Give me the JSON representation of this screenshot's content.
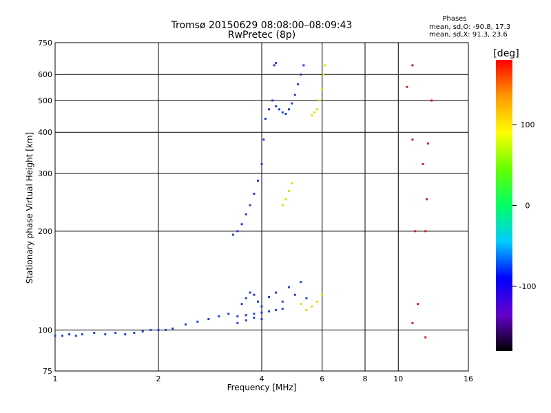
{
  "chart_data": {
    "type": "scatter",
    "title": "Tromsø 20150629 08:08:00–08:09:43",
    "subtitle": "RwPretec (8p)",
    "xlabel": "Frequency [MHz]",
    "ylabel": "Stationary phase Virtual Height [km]",
    "x_scale": "log",
    "y_scale": "log",
    "xlim": [
      1,
      16
    ],
    "ylim": [
      75,
      750
    ],
    "x_ticks": [
      1,
      2,
      4,
      6,
      8,
      10,
      16
    ],
    "y_ticks": [
      75,
      100,
      200,
      300,
      400,
      500,
      600,
      750
    ],
    "x_gridlines": [
      2,
      4,
      6,
      8,
      10
    ],
    "y_gridlines": [
      100,
      200,
      300,
      400,
      500,
      600
    ],
    "grid": true,
    "stats": {
      "heading": "Phases",
      "line_o": "mean, sd,O: -90.8, 17.3",
      "line_x": "mean, sd,X: 91.3, 23.6"
    },
    "colorbar": {
      "label": "[deg]",
      "range": [
        -180,
        180
      ],
      "ticks": [
        100,
        0,
        -100
      ],
      "colors": [
        "#000000",
        "#6600cc",
        "#0000ff",
        "#00ccff",
        "#00ff66",
        "#66ff00",
        "#ffff00",
        "#ff9900",
        "#ff0000"
      ],
      "placement": "right"
    },
    "series": [
      {
        "comment": "O-mode E/F1 lower trace, blue",
        "color": "#1f3fe0",
        "points": [
          [
            1.0,
            96
          ],
          [
            1.05,
            96
          ],
          [
            1.1,
            97
          ],
          [
            1.15,
            96
          ],
          [
            1.2,
            97
          ],
          [
            1.3,
            98
          ],
          [
            1.4,
            97
          ],
          [
            1.5,
            98
          ],
          [
            1.6,
            97
          ],
          [
            1.7,
            98
          ],
          [
            1.8,
            99
          ],
          [
            1.9,
            100
          ],
          [
            2.0,
            100
          ],
          [
            2.1,
            100
          ],
          [
            2.2,
            101
          ],
          [
            2.4,
            104
          ],
          [
            2.6,
            106
          ],
          [
            2.8,
            108
          ],
          [
            3.0,
            110
          ],
          [
            3.2,
            112
          ],
          [
            3.4,
            110
          ],
          [
            3.6,
            111
          ],
          [
            3.8,
            112
          ],
          [
            4.0,
            113
          ],
          [
            4.2,
            114
          ],
          [
            4.4,
            115
          ],
          [
            4.6,
            116
          ]
        ]
      },
      {
        "comment": "O-mode F-layer trace, blue",
        "color": "#1f3fe0",
        "points": [
          [
            3.3,
            195
          ],
          [
            3.4,
            200
          ],
          [
            3.5,
            210
          ],
          [
            3.6,
            225
          ],
          [
            3.7,
            240
          ],
          [
            3.8,
            260
          ],
          [
            3.9,
            285
          ],
          [
            4.0,
            320
          ],
          [
            4.05,
            380
          ],
          [
            4.1,
            440
          ],
          [
            4.2,
            470
          ],
          [
            4.3,
            500
          ],
          [
            4.4,
            480
          ],
          [
            4.5,
            470
          ],
          [
            4.6,
            460
          ],
          [
            4.7,
            455
          ],
          [
            4.8,
            470
          ],
          [
            4.9,
            490
          ],
          [
            5.0,
            520
          ],
          [
            5.1,
            560
          ],
          [
            5.2,
            600
          ],
          [
            4.35,
            640
          ],
          [
            4.4,
            650
          ],
          [
            5.3,
            640
          ]
        ]
      },
      {
        "comment": "Weak blue scatter near Es region",
        "color": "#2a3fd0",
        "points": [
          [
            3.5,
            120
          ],
          [
            3.6,
            125
          ],
          [
            3.7,
            130
          ],
          [
            3.8,
            128
          ],
          [
            3.9,
            122
          ],
          [
            4.0,
            118
          ],
          [
            4.2,
            126
          ],
          [
            4.4,
            130
          ],
          [
            4.6,
            122
          ],
          [
            4.8,
            135
          ],
          [
            5.0,
            128
          ],
          [
            3.4,
            105
          ],
          [
            3.6,
            107
          ],
          [
            3.8,
            109
          ],
          [
            4.0,
            108
          ],
          [
            5.2,
            140
          ],
          [
            5.4,
            125
          ]
        ]
      },
      {
        "comment": "X-mode trace, yellow",
        "color": "#e6dc00",
        "points": [
          [
            4.6,
            240
          ],
          [
            4.7,
            250
          ],
          [
            4.8,
            265
          ],
          [
            4.9,
            280
          ],
          [
            5.6,
            450
          ],
          [
            5.7,
            460
          ],
          [
            5.8,
            470
          ],
          [
            5.9,
            500
          ],
          [
            6.0,
            540
          ],
          [
            6.05,
            600
          ],
          [
            6.1,
            640
          ],
          [
            5.2,
            120
          ],
          [
            5.4,
            115
          ],
          [
            5.6,
            118
          ],
          [
            5.8,
            122
          ],
          [
            6.0,
            128
          ]
        ]
      },
      {
        "comment": "Isolated high-frequency echoes",
        "color": "#d02020",
        "points": [
          [
            11.0,
            640
          ],
          [
            10.6,
            550
          ],
          [
            11.0,
            380
          ],
          [
            11.8,
            320
          ],
          [
            12.2,
            370
          ],
          [
            12.5,
            500
          ],
          [
            11.2,
            200
          ],
          [
            12.0,
            200
          ],
          [
            12.1,
            250
          ],
          [
            11.4,
            120
          ],
          [
            11.0,
            105
          ],
          [
            12.0,
            95
          ]
        ]
      }
    ]
  }
}
